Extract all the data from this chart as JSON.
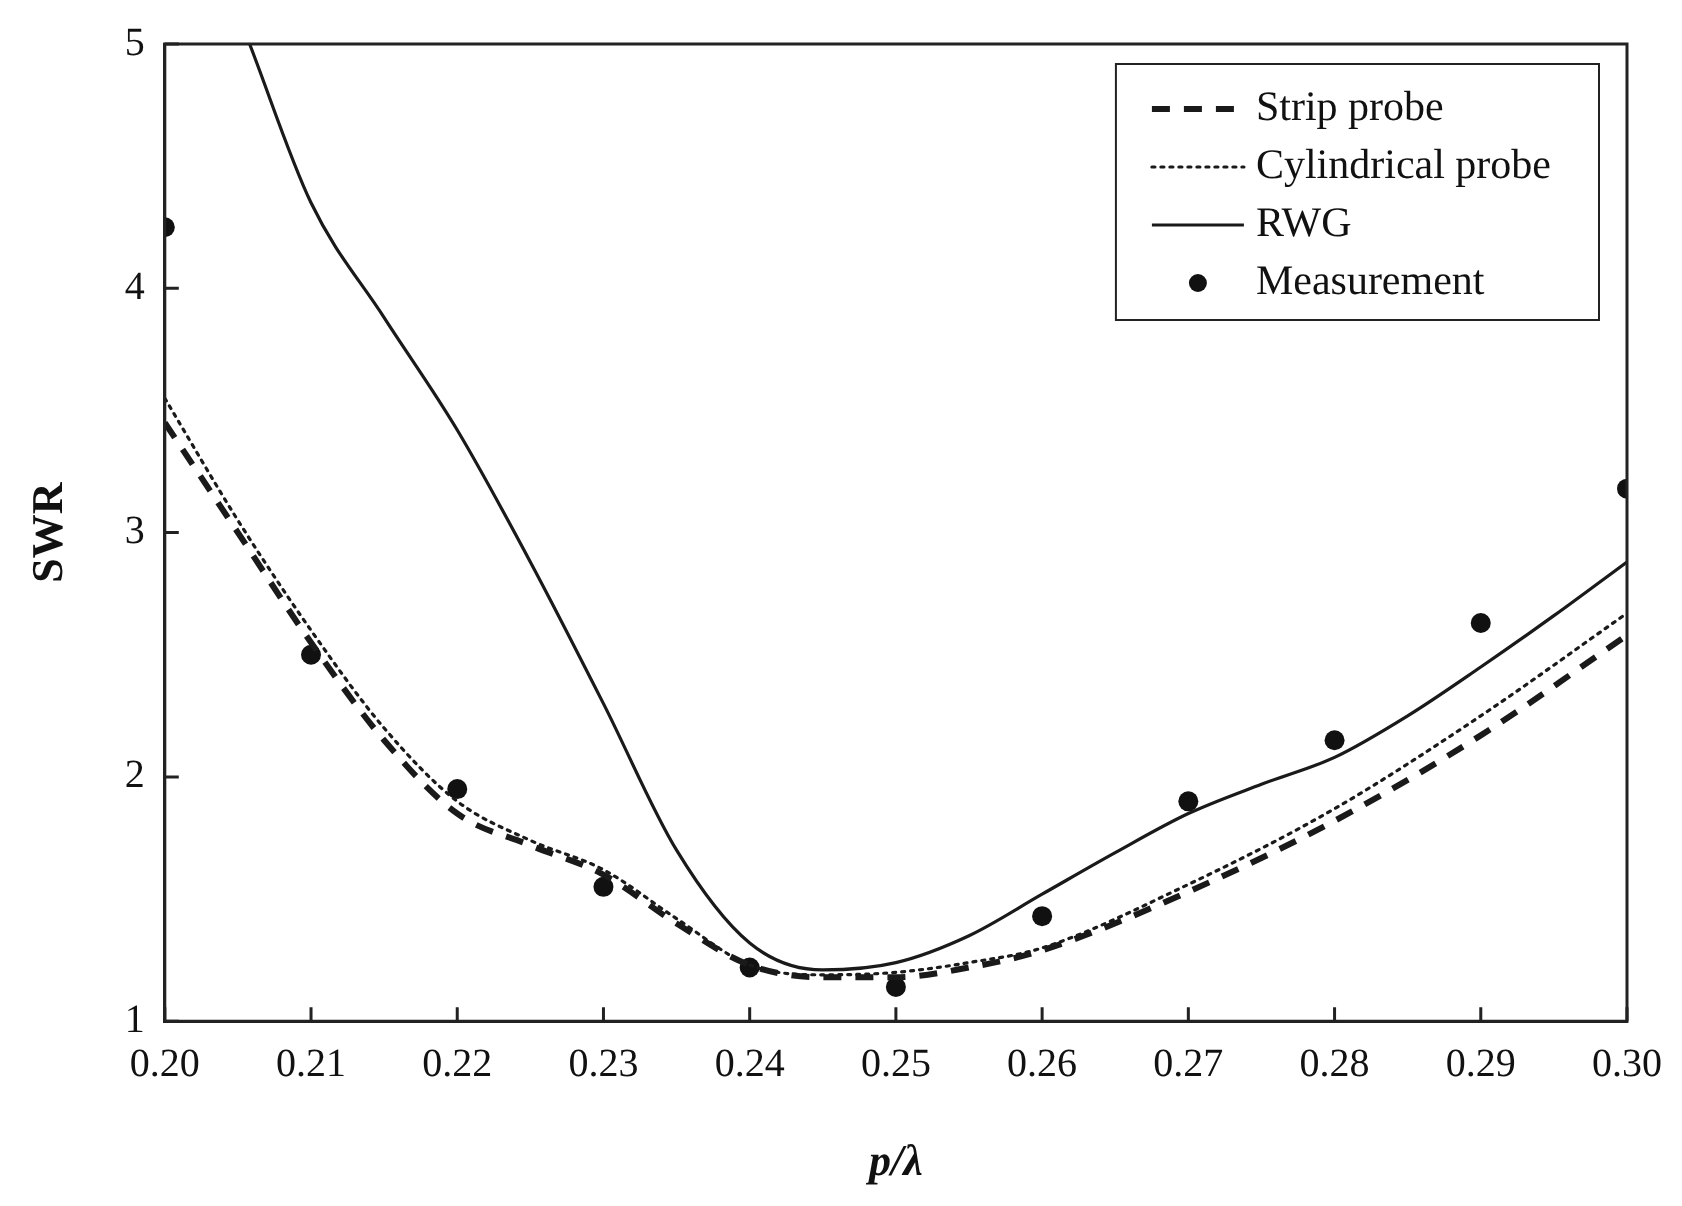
{
  "chart_data": {
    "type": "line",
    "xlabel": "p/λ",
    "ylabel": "SWR",
    "xlim": [
      0.2,
      0.3
    ],
    "xticks": [
      {
        "value": 0.2,
        "label": "0.20"
      },
      {
        "value": 0.21,
        "label": "0.21"
      },
      {
        "value": 0.22,
        "label": "0.22"
      },
      {
        "value": 0.23,
        "label": "0.23"
      },
      {
        "value": 0.24,
        "label": "0.24"
      },
      {
        "value": 0.25,
        "label": "0.25"
      },
      {
        "value": 0.26,
        "label": "0.26"
      },
      {
        "value": 0.27,
        "label": "0.27"
      },
      {
        "value": 0.28,
        "label": "0.28"
      },
      {
        "value": 0.29,
        "label": "0.29"
      },
      {
        "value": 0.3,
        "label": "0.30"
      }
    ],
    "ylim": [
      1,
      5
    ],
    "yticks": [
      1,
      2,
      3,
      4,
      5
    ],
    "grid": false,
    "legend": "top right",
    "series": [
      {
        "name": "Strip probe",
        "type": "line",
        "color": "#1a1a1a",
        "line_style": "dashed",
        "marker": "none",
        "x": [
          0.2,
          0.205,
          0.21,
          0.215,
          0.22,
          0.225,
          0.23,
          0.235,
          0.24,
          0.245,
          0.25,
          0.255,
          0.26,
          0.27,
          0.28,
          0.29,
          0.3
        ],
        "values": [
          3.45,
          3.0,
          2.55,
          2.15,
          1.85,
          1.72,
          1.6,
          1.4,
          1.23,
          1.18,
          1.18,
          1.22,
          1.29,
          1.53,
          1.82,
          2.17,
          2.58
        ]
      },
      {
        "name": "Cylindrical probe",
        "type": "line",
        "color": "#1a1a1a",
        "line_style": "dotted",
        "marker": "none",
        "x": [
          0.2,
          0.205,
          0.21,
          0.215,
          0.22,
          0.225,
          0.23,
          0.235,
          0.24,
          0.245,
          0.25,
          0.255,
          0.26,
          0.27,
          0.28,
          0.29,
          0.3
        ],
        "values": [
          3.55,
          3.05,
          2.6,
          2.2,
          1.9,
          1.74,
          1.62,
          1.42,
          1.23,
          1.19,
          1.2,
          1.24,
          1.3,
          1.56,
          1.87,
          2.25,
          2.67
        ]
      },
      {
        "name": "RWG",
        "type": "line",
        "color": "#1a1a1a",
        "line_style": "solid",
        "marker": "none",
        "x": [
          0.2058,
          0.21,
          0.215,
          0.22,
          0.225,
          0.23,
          0.235,
          0.24,
          0.245,
          0.25,
          0.255,
          0.26,
          0.265,
          0.27,
          0.275,
          0.28,
          0.285,
          0.29,
          0.295,
          0.3
        ],
        "values": [
          5,
          4.35,
          3.88,
          3.42,
          2.88,
          2.3,
          1.7,
          1.32,
          1.21,
          1.24,
          1.35,
          1.52,
          1.69,
          1.85,
          1.97,
          2.08,
          2.25,
          2.45,
          2.66,
          2.88
        ]
      },
      {
        "name": "Measurement",
        "type": "scatter",
        "color": "#111111",
        "marker": "circle",
        "x": [
          0.2,
          0.21,
          0.22,
          0.23,
          0.24,
          0.25,
          0.26,
          0.27,
          0.28,
          0.29,
          0.3
        ],
        "values": [
          4.25,
          2.5,
          1.95,
          1.55,
          1.22,
          1.14,
          1.43,
          1.9,
          2.15,
          2.63,
          3.18
        ]
      }
    ]
  }
}
